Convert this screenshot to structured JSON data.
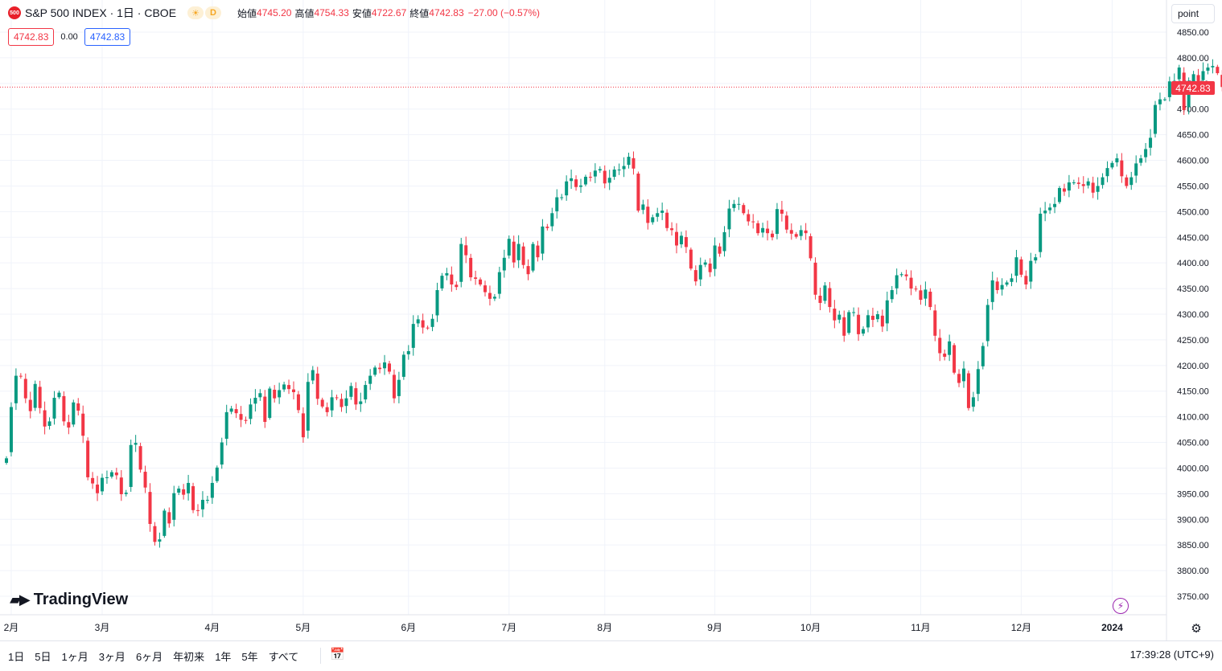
{
  "header": {
    "symbol_badge": "500",
    "title": "S&P 500 INDEX · 1日 · CBOE",
    "session_icon": "sun-icon",
    "delay_badge": "D",
    "open_label": "始値",
    "open": "4745.20",
    "high_label": "高値",
    "high": "4754.33",
    "low_label": "安値",
    "low": "4722.67",
    "close_label": "終値",
    "close": "4742.83",
    "change": "−27.00 (−0.57%)"
  },
  "pills": {
    "left": "4742.83",
    "mid": "0.00",
    "right": "4742.83"
  },
  "price_unit": "point",
  "last_price": "4742.83",
  "logo_text": "TradingView",
  "bottom": {
    "ranges": [
      "1日",
      "5日",
      "1ヶ月",
      "3ヶ月",
      "6ヶ月",
      "年初来",
      "1年",
      "5年",
      "すべて"
    ],
    "clock": "17:39:28 (UTC+9)"
  },
  "colors": {
    "up": "#089981",
    "down": "#f23645",
    "grid": "#f0f3fa",
    "axis_text": "#131722"
  },
  "chart_data": {
    "type": "candlestick",
    "title": "S&P 500 INDEX · 1日 · CBOE",
    "ylim": [
      3725,
      4875
    ],
    "y_ticks": [
      3750,
      3800,
      3850,
      3900,
      3950,
      4000,
      4050,
      4100,
      4150,
      4200,
      4250,
      4300,
      4350,
      4400,
      4450,
      4500,
      4550,
      4600,
      4650,
      4700,
      4750,
      4800,
      4850
    ],
    "y_tick_labels": [
      "3750.00",
      "3800.00",
      "3850.00",
      "3900.00",
      "3950.00",
      "4000.00",
      "4050.00",
      "4100.00",
      "4150.00",
      "4200.00",
      "4250.00",
      "4300.00",
      "4350.00",
      "4400.00",
      "4450.00",
      "4500.00",
      "4550.00",
      "4600.00",
      "4650.00",
      "4700.00",
      "4750.00",
      "4800.00",
      "4850.00"
    ],
    "x_ticks": [
      {
        "label": "2月",
        "index": 1
      },
      {
        "label": "3月",
        "index": 20
      },
      {
        "label": "4月",
        "index": 43
      },
      {
        "label": "5月",
        "index": 62
      },
      {
        "label": "6月",
        "index": 84
      },
      {
        "label": "7月",
        "index": 105
      },
      {
        "label": "8月",
        "index": 125
      },
      {
        "label": "9月",
        "index": 148
      },
      {
        "label": "10月",
        "index": 168
      },
      {
        "label": "11月",
        "index": 191
      },
      {
        "label": "12月",
        "index": 212
      },
      {
        "label": "2024",
        "index": 231
      }
    ],
    "last_price_line": 4742.83,
    "closes": [
      4019,
      4119,
      4180,
      4179,
      4136,
      4111,
      4164,
      4117,
      4081,
      4091,
      4137,
      4147,
      4091,
      4079,
      4128,
      4112,
      4063,
      3982,
      3970,
      3951,
      3981,
      3982,
      3992,
      3986,
      3949,
      3952,
      4045,
      4049,
      3997,
      3962,
      3891,
      3856,
      3861,
      3917,
      3892,
      3951,
      3960,
      3948,
      3971,
      3918,
      3917,
      3938,
      3938,
      3971,
      4001,
      4050,
      4109,
      4116,
      4107,
      4094,
      4092,
      4124,
      4137,
      4146,
      4090,
      4155,
      4136,
      4152,
      4163,
      4154,
      4148,
      4113,
      4060,
      4168,
      4191,
      4135,
      4120,
      4109,
      4138,
      4137,
      4119,
      4136,
      4160,
      4124,
      4130,
      4162,
      4180,
      4196,
      4193,
      4206,
      4188,
      4136,
      4172,
      4221,
      4228,
      4281,
      4290,
      4274,
      4273,
      4291,
      4347,
      4375,
      4380,
      4358,
      4353,
      4437,
      4415,
      4372,
      4369,
      4358,
      4343,
      4330,
      4334,
      4382,
      4410,
      4447,
      4401,
      4437,
      4396,
      4378,
      4437,
      4411,
      4471,
      4468,
      4497,
      4528,
      4528,
      4559,
      4565,
      4548,
      4551,
      4568,
      4567,
      4580,
      4583,
      4555,
      4566,
      4582,
      4582,
      4589,
      4607,
      4584,
      4502,
      4514,
      4478,
      4489,
      4497,
      4502,
      4468,
      4464,
      4434,
      4453,
      4431,
      4389,
      4364,
      4396,
      4401,
      4382,
      4434,
      4418,
      4460,
      4506,
      4515,
      4515,
      4497,
      4481,
      4480,
      4458,
      4468,
      4458,
      4450,
      4505,
      4496,
      4465,
      4457,
      4451,
      4464,
      4458,
      4409,
      4338,
      4322,
      4356,
      4314,
      4288,
      4299,
      4258,
      4304,
      4304,
      4261,
      4271,
      4298,
      4289,
      4300,
      4276,
      4327,
      4347,
      4376,
      4378,
      4374,
      4350,
      4349,
      4328,
      4348,
      4314,
      4258,
      4224,
      4217,
      4247,
      4186,
      4166,
      4194,
      4117,
      4138,
      4193,
      4238,
      4318,
      4366,
      4347,
      4357,
      4362,
      4370,
      4411,
      4377,
      4358,
      4404,
      4411,
      4496,
      4502,
      4508,
      4515,
      4546,
      4539,
      4557,
      4557,
      4554,
      4550,
      4559,
      4537,
      4550,
      4567,
      4585,
      4595,
      4604,
      4569,
      4550,
      4567,
      4594,
      4604,
      4622,
      4644,
      4708,
      4719,
      4719,
      4754,
      4755,
      4781,
      4698,
      4746,
      4768,
      4754,
      4774,
      4781,
      4784,
      4770,
      4743
    ]
  }
}
